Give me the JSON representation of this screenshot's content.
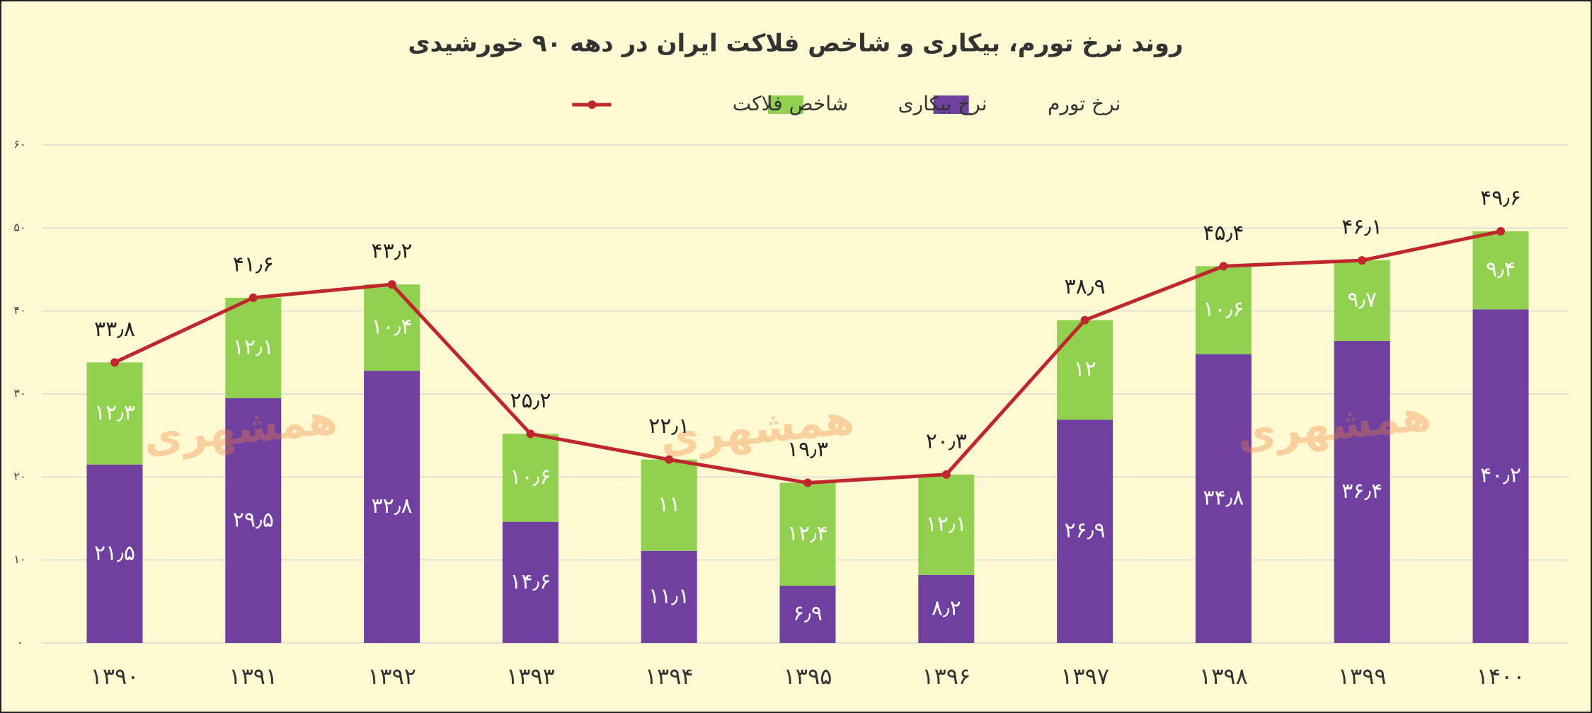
{
  "chart_data": {
    "type": "stacked-bar-line",
    "title": "روند نرخ تورم، بیکاری و شاخص فلاکت ایران در دهه ۹۰ خورشیدی",
    "watermark": "همشهری",
    "categories": [
      "۱۳۹۰",
      "۱۳۹۱",
      "۱۳۹۲",
      "۱۳۹۳",
      "۱۳۹۴",
      "۱۳۹۵",
      "۱۳۹۶",
      "۱۳۹۷",
      "۱۳۹۸",
      "۱۳۹۹",
      "۱۴۰۰"
    ],
    "series": [
      {
        "name": "نرخ تورم",
        "color": "#7040a0",
        "kind": "bar",
        "values": [
          21.5,
          29.5,
          32.8,
          14.6,
          11.1,
          6.9,
          8.2,
          26.9,
          34.8,
          36.4,
          40.2
        ],
        "value_labels": [
          "۲۱٫۵",
          "۲۹٫۵",
          "۳۲٫۸",
          "۱۴٫۶",
          "۱۱٫۱",
          "۶٫۹",
          "۸٫۲",
          "۲۶٫۹",
          "۳۴٫۸",
          "۳۶٫۴",
          "۴۰٫۲"
        ]
      },
      {
        "name": "نرخ بیکاری",
        "color": "#92d050",
        "kind": "bar",
        "values": [
          12.3,
          12.1,
          10.4,
          10.6,
          11,
          12.4,
          12.1,
          12,
          10.6,
          9.7,
          9.4
        ],
        "value_labels": [
          "۱۲٫۳",
          "۱۲٫۱",
          "۱۰٫۴",
          "۱۰٫۶",
          "۱۱",
          "۱۲٫۴",
          "۱۲٫۱",
          "۱۲",
          "۱۰٫۶",
          "۹٫۷",
          "۹٫۴"
        ]
      },
      {
        "name": "شاخص فلاکت",
        "color": "#c0272d",
        "kind": "line",
        "values": [
          33.8,
          41.6,
          43.2,
          25.2,
          22.1,
          19.3,
          20.3,
          38.9,
          45.4,
          46.1,
          49.6
        ],
        "value_labels": [
          "۳۳٫۸",
          "۴۱٫۶",
          "۴۳٫۲",
          "۲۵٫۲",
          "۲۲٫۱",
          "۱۹٫۳",
          "۲۰٫۳",
          "۳۸٫۹",
          "۴۵٫۴",
          "۴۶٫۱",
          "۴۹٫۶"
        ]
      }
    ],
    "ylim": [
      0,
      60
    ],
    "yticks": [
      {
        "value": 0,
        "label": "۰"
      },
      {
        "value": 10,
        "label": "۱۰"
      },
      {
        "value": 20,
        "label": "۲۰"
      },
      {
        "value": 30,
        "label": "۳۰"
      },
      {
        "value": 40,
        "label": "۴۰"
      },
      {
        "value": 50,
        "label": "۵۰"
      },
      {
        "value": 60,
        "label": "۶۰"
      }
    ],
    "grid": true
  }
}
